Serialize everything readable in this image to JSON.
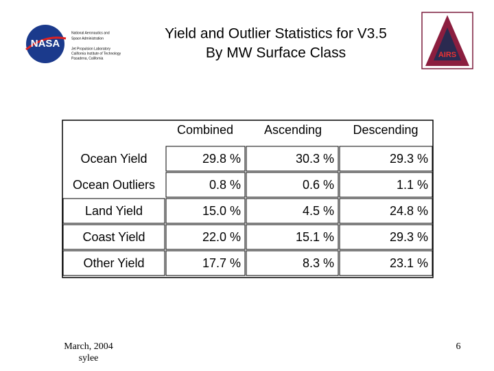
{
  "header": {
    "agency": [
      "National Aeronautics and",
      "Space Administration"
    ],
    "lab": [
      "Jet Propulsion Laboratory",
      "California Institute of Technology",
      "Pasadena, California"
    ],
    "title": [
      "Yield and Outlier Statistics for V3.5",
      "By MW Surface Class"
    ],
    "logos": {
      "nasa": "NASA",
      "airs": "AIRS"
    }
  },
  "table": {
    "columns": [
      "Combined",
      "Ascending",
      "Descending"
    ],
    "rows": [
      [
        "Ocean Yield",
        "29.8 %",
        "30.3 %",
        "29.3 %"
      ],
      [
        "Ocean Outliers",
        "0.8 %",
        "0.6 %",
        "1.1 %"
      ],
      [
        "Land Yield",
        "15.0 %",
        "4.5 %",
        "24.8 %"
      ],
      [
        "Coast Yield",
        "22.0 %",
        "15.1 %",
        "29.3 %"
      ],
      [
        "Other Yield",
        "17.7 %",
        "8.3 %",
        "23.1 %"
      ]
    ]
  },
  "footer": {
    "date": "March, 2004",
    "author": "sylee",
    "page": "6"
  }
}
